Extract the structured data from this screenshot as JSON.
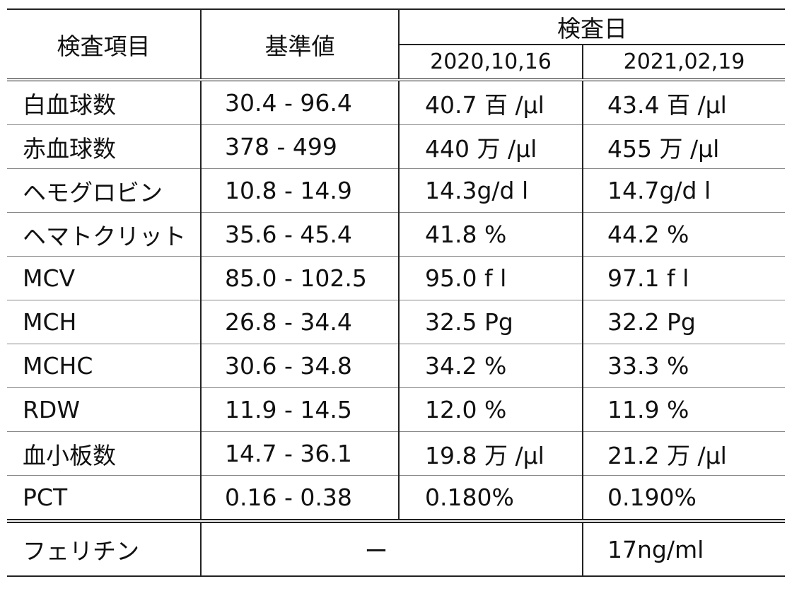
{
  "header": {
    "item": "検査項目",
    "reference": "基準値",
    "date_group": "検査日",
    "date1": "2020,10,16",
    "date2": "2021,02,19"
  },
  "rows": [
    {
      "name": "白血球数",
      "ref": "30.4 - 96.4",
      "v1": "40.7 百 /μl",
      "v2": "43.4 百 /μl"
    },
    {
      "name": "赤血球数",
      "ref": "378 - 499",
      "v1": "440 万 /μl",
      "v2": "455 万 /μl"
    },
    {
      "name": "ヘモグロビン",
      "ref": "10.8 - 14.9",
      "v1": "14.3g/d l",
      "v2": "14.7g/d l"
    },
    {
      "name": "ヘマトクリット",
      "ref": "35.6 - 45.4",
      "v1": "41.8 %",
      "v2": "44.2 %"
    },
    {
      "name": "MCV",
      "ref": "85.0 - 102.5",
      "v1": "95.0 f l",
      "v2": "97.1 f l"
    },
    {
      "name": "MCH",
      "ref": "26.8 - 34.4",
      "v1": "32.5 Pg",
      "v2": "32.2 Pg"
    },
    {
      "name": "MCHC",
      "ref": "30.6 - 34.8",
      "v1": "34.2 %",
      "v2": "33.3 %"
    },
    {
      "name": "RDW",
      "ref": "11.9 - 14.5",
      "v1": "12.0 %",
      "v2": "11.9 %"
    },
    {
      "name": "血小板数",
      "ref": "14.7 - 36.1",
      "v1": "19.8 万 /μl",
      "v2": "21.2 万 /μl"
    },
    {
      "name": "PCT",
      "ref": "0.16 - 0.38",
      "v1": "0.180%",
      "v2": "0.190%"
    }
  ],
  "ferritin": {
    "name": "フェリチン",
    "ref_v1": "ー",
    "v2": "17ng/ml"
  }
}
